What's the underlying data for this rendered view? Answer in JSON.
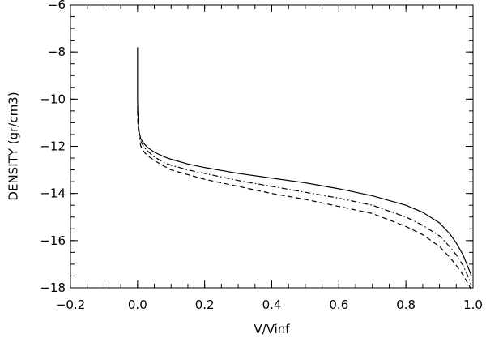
{
  "chart_data": {
    "type": "line",
    "title": "",
    "xlabel": "V/Vinf",
    "ylabel": "DENSITY (gr/cm3)",
    "xlim": [
      -0.2,
      1.0
    ],
    "ylim": [
      -18,
      -6
    ],
    "x_ticks": [
      -0.2,
      0.0,
      0.2,
      0.4,
      0.6,
      0.8,
      1.0
    ],
    "x_tick_labels": [
      "−0.2",
      "0.0",
      "0.2",
      "0.4",
      "0.6",
      "0.8",
      "1.0"
    ],
    "y_ticks": [
      -18,
      -16,
      -14,
      -12,
      -10,
      -8,
      -6
    ],
    "y_tick_labels": [
      "−18",
      "−16",
      "−14",
      "−12",
      "−10",
      "−8",
      "−6"
    ],
    "grid": false,
    "legend": "none",
    "series": [
      {
        "style": "solid",
        "x": [
          0.0,
          0.0,
          0.0,
          0.001,
          0.003,
          0.005,
          0.01,
          0.02,
          0.03,
          0.05,
          0.08,
          0.1,
          0.15,
          0.2,
          0.3,
          0.4,
          0.5,
          0.6,
          0.7,
          0.8,
          0.85,
          0.9,
          0.93,
          0.95,
          0.97,
          0.98,
          0.99,
          0.995
        ],
        "y": [
          -7.8,
          -9.0,
          -10.0,
          -10.6,
          -11.1,
          -11.4,
          -11.7,
          -11.9,
          -12.05,
          -12.25,
          -12.45,
          -12.55,
          -12.75,
          -12.9,
          -13.15,
          -13.35,
          -13.55,
          -13.8,
          -14.1,
          -14.5,
          -14.8,
          -15.25,
          -15.7,
          -16.1,
          -16.6,
          -16.95,
          -17.3,
          -17.5
        ]
      },
      {
        "style": "dash-dot",
        "x": [
          0.0,
          0.001,
          0.003,
          0.005,
          0.01,
          0.02,
          0.03,
          0.05,
          0.08,
          0.1,
          0.15,
          0.2,
          0.3,
          0.4,
          0.5,
          0.6,
          0.7,
          0.8,
          0.85,
          0.9,
          0.93,
          0.95,
          0.97,
          0.98,
          0.99,
          0.995
        ],
        "y": [
          -10.3,
          -10.8,
          -11.2,
          -11.5,
          -11.8,
          -12.05,
          -12.2,
          -12.45,
          -12.7,
          -12.8,
          -13.0,
          -13.15,
          -13.45,
          -13.7,
          -13.95,
          -14.2,
          -14.5,
          -15.0,
          -15.35,
          -15.8,
          -16.25,
          -16.6,
          -17.05,
          -17.35,
          -17.7,
          -17.9
        ]
      },
      {
        "style": "dashed",
        "x": [
          0.0,
          0.001,
          0.003,
          0.005,
          0.01,
          0.02,
          0.03,
          0.05,
          0.08,
          0.1,
          0.15,
          0.2,
          0.3,
          0.4,
          0.5,
          0.6,
          0.7,
          0.8,
          0.85,
          0.9,
          0.93,
          0.95,
          0.97,
          0.98,
          0.99,
          0.995
        ],
        "y": [
          -10.5,
          -11.0,
          -11.4,
          -11.7,
          -12.0,
          -12.25,
          -12.4,
          -12.6,
          -12.85,
          -13.0,
          -13.2,
          -13.4,
          -13.7,
          -14.0,
          -14.25,
          -14.55,
          -14.85,
          -15.4,
          -15.75,
          -16.25,
          -16.7,
          -17.05,
          -17.45,
          -17.7,
          -17.95,
          -18.1
        ]
      }
    ]
  }
}
